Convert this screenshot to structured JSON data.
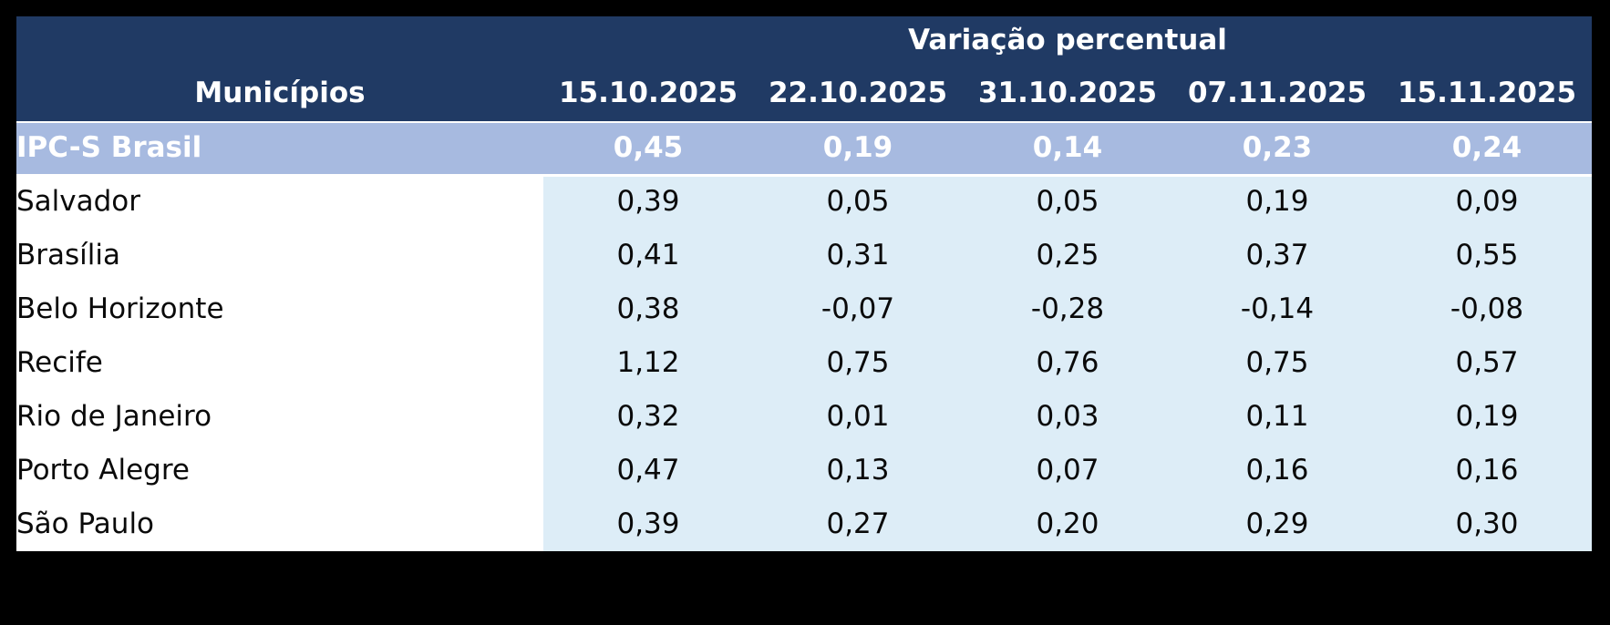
{
  "colors": {
    "page_background": "#000000",
    "header_background": "#203a64",
    "header_text": "#ffffff",
    "summary_row_background": "#a7bae0",
    "summary_row_text": "#ffffff",
    "value_cell_background": "#ddedf7",
    "name_cell_background": "#ffffff",
    "data_text": "#0a0a0a"
  },
  "chart_data": {
    "type": "table",
    "title": "Variação percentual",
    "row_header_label": "Municípios",
    "columns": [
      "15.10.2025",
      "22.10.2025",
      "31.10.2025",
      "07.11.2025",
      "15.11.2025"
    ],
    "summary_row": {
      "label": "IPC-S Brasil",
      "values": [
        "0,45",
        "0,19",
        "0,14",
        "0,23",
        "0,24"
      ]
    },
    "rows": [
      {
        "name": "Salvador",
        "values": [
          "0,39",
          "0,05",
          "0,05",
          "0,19",
          "0,09"
        ]
      },
      {
        "name": "Brasília",
        "values": [
          "0,41",
          "0,31",
          "0,25",
          "0,37",
          "0,55"
        ]
      },
      {
        "name": "Belo Horizonte",
        "values": [
          "0,38",
          "-0,07",
          "-0,28",
          "-0,14",
          "-0,08"
        ]
      },
      {
        "name": "Recife",
        "values": [
          "1,12",
          "0,75",
          "0,76",
          "0,75",
          "0,57"
        ]
      },
      {
        "name": "Rio de Janeiro",
        "values": [
          "0,32",
          "0,01",
          "0,03",
          "0,11",
          "0,19"
        ]
      },
      {
        "name": "Porto Alegre",
        "values": [
          "0,47",
          "0,13",
          "0,07",
          "0,16",
          "0,16"
        ]
      },
      {
        "name": "São Paulo",
        "values": [
          "0,39",
          "0,27",
          "0,20",
          "0,29",
          "0,30"
        ]
      }
    ],
    "layout": {
      "grid": false,
      "summary_row_highlighted": true,
      "header_spans_value_columns_only": true
    }
  }
}
